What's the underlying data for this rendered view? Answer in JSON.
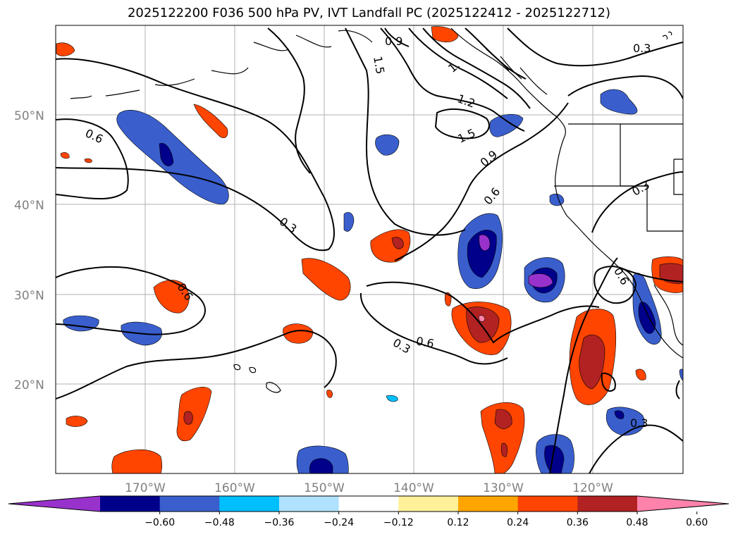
{
  "title": "2025122200 F036 500 hPa PV, IVT Landfall PC (2025122412 - 2025122712)",
  "lat_labels": [
    "50°N",
    "40°N",
    "30°N",
    "20°N"
  ],
  "lon_labels": [
    "170°W",
    "160°W",
    "150°W",
    "140°W",
    "130°W",
    "120°W"
  ],
  "contour_labels": [
    "0.3",
    "0.9",
    "1.5",
    "1.",
    "1.2",
    "1.5",
    "0.9",
    "0.6",
    "0.6",
    "0.3",
    "0.6",
    "0.6",
    "0.3",
    "0.3",
    "0.6",
    "0.3"
  ],
  "colorbar": {
    "ticks": [
      "−0.60",
      "−0.48",
      "−0.36",
      "−0.24",
      "−0.12",
      "0.12",
      "0.24",
      "0.36",
      "0.48",
      "0.60"
    ],
    "colors": [
      "#9932cc",
      "#00008b",
      "#3a5fcd",
      "#00bfff",
      "#b0e2ff",
      "#ffffff",
      "#fff09a",
      "#ffa500",
      "#ff4500",
      "#b22222",
      "#ff82ab"
    ]
  }
}
